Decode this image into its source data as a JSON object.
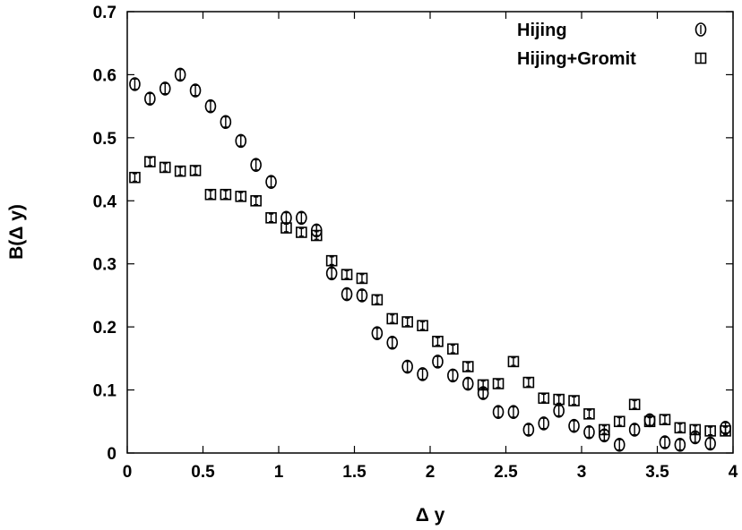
{
  "chart_data": {
    "type": "scatter",
    "xlabel": "Δ y",
    "ylabel": "B(Δ y)",
    "xlim": [
      0,
      4
    ],
    "ylim": [
      0,
      0.7
    ],
    "xticks": [
      0,
      0.5,
      1,
      1.5,
      2,
      2.5,
      3,
      3.5,
      4
    ],
    "xtick_labels": [
      "0",
      "0.5",
      "1",
      "1.5",
      "2",
      "2.5",
      "3",
      "3.5",
      "4"
    ],
    "yticks": [
      0,
      0.1,
      0.2,
      0.3,
      0.4,
      0.5,
      0.6,
      0.7
    ],
    "ytick_labels": [
      "0",
      "0.1",
      "0.2",
      "0.3",
      "0.4",
      "0.5",
      "0.6",
      "0.7"
    ],
    "grid": false,
    "legend_position": "top-right",
    "x": [
      0.05,
      0.15,
      0.25,
      0.35,
      0.45,
      0.55,
      0.65,
      0.75,
      0.85,
      0.95,
      1.05,
      1.15,
      1.25,
      1.35,
      1.45,
      1.55,
      1.65,
      1.75,
      1.85,
      1.95,
      2.05,
      2.15,
      2.25,
      2.35,
      2.45,
      2.55,
      2.65,
      2.75,
      2.85,
      2.95,
      3.05,
      3.15,
      3.25,
      3.35,
      3.45,
      3.55,
      3.65,
      3.75,
      3.85,
      3.95
    ],
    "series": [
      {
        "name": "Hijing",
        "marker": "circle",
        "values": [
          0.585,
          0.562,
          0.578,
          0.6,
          0.575,
          0.55,
          0.525,
          0.495,
          0.457,
          0.43,
          0.373,
          0.373,
          0.353,
          0.285,
          0.252,
          0.25,
          0.19,
          0.175,
          0.137,
          0.125,
          0.145,
          0.123,
          0.11,
          0.095,
          0.065,
          0.065,
          0.037,
          0.047,
          0.067,
          0.043,
          0.033,
          0.028,
          0.013,
          0.037,
          0.052,
          0.017,
          0.013,
          0.025,
          0.015,
          0.04
        ],
        "errors": [
          0.008,
          0.008,
          0.008,
          0.008,
          0.008,
          0.008,
          0.008,
          0.008,
          0.008,
          0.008,
          0.008,
          0.008,
          0.008,
          0.008,
          0.008,
          0.008,
          0.008,
          0.008,
          0.008,
          0.008,
          0.008,
          0.008,
          0.008,
          0.008,
          0.008,
          0.008,
          0.008,
          0.008,
          0.008,
          0.008,
          0.008,
          0.008,
          0.008,
          0.008,
          0.008,
          0.008,
          0.008,
          0.008,
          0.008,
          0.008
        ]
      },
      {
        "name": "Hijing+Gromit",
        "marker": "square",
        "values": [
          0.437,
          0.462,
          0.453,
          0.447,
          0.448,
          0.41,
          0.41,
          0.407,
          0.4,
          0.373,
          0.357,
          0.35,
          0.345,
          0.305,
          0.283,
          0.277,
          0.243,
          0.213,
          0.208,
          0.202,
          0.177,
          0.165,
          0.137,
          0.108,
          0.11,
          0.145,
          0.112,
          0.087,
          0.085,
          0.083,
          0.062,
          0.037,
          0.05,
          0.077,
          0.05,
          0.053,
          0.04,
          0.037,
          0.035,
          0.035
        ],
        "errors": [
          0.006,
          0.006,
          0.006,
          0.006,
          0.006,
          0.006,
          0.006,
          0.006,
          0.006,
          0.006,
          0.006,
          0.006,
          0.006,
          0.006,
          0.006,
          0.006,
          0.006,
          0.006,
          0.006,
          0.006,
          0.006,
          0.006,
          0.006,
          0.006,
          0.006,
          0.006,
          0.006,
          0.006,
          0.006,
          0.006,
          0.006,
          0.006,
          0.006,
          0.006,
          0.006,
          0.006,
          0.006,
          0.006,
          0.006,
          0.006
        ]
      }
    ]
  }
}
